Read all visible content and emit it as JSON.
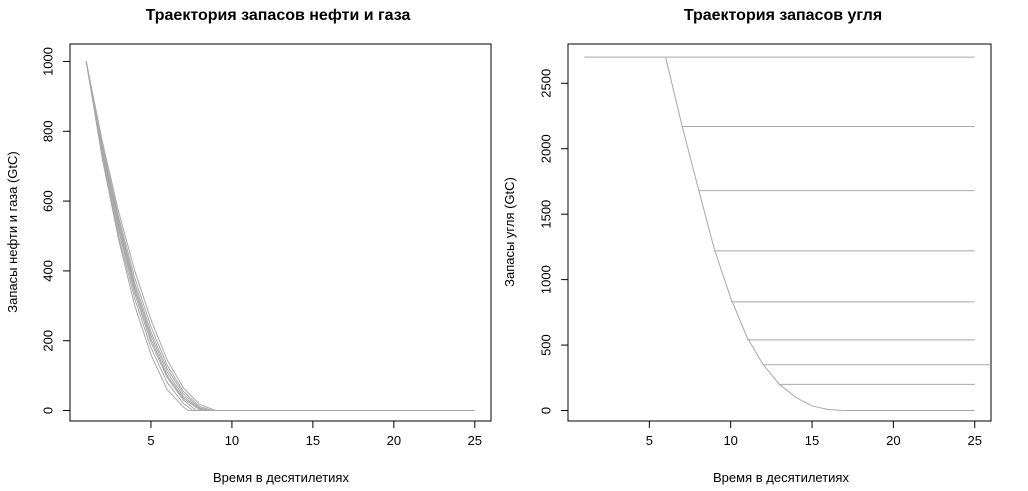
{
  "chart_data": [
    {
      "type": "line",
      "title": "Траектория запасов нефти и газа",
      "xlabel": "Время в десятилетиях",
      "ylabel": "Запасы нефти и газа (GtC)",
      "xlim": [
        0,
        26
      ],
      "ylim": [
        -30,
        1050
      ],
      "xticks": [
        5,
        10,
        15,
        20,
        25
      ],
      "yticks": [
        0,
        200,
        400,
        600,
        800,
        1000
      ],
      "line_color": "#a8a8a8",
      "series": [
        {
          "x": [
            1,
            2,
            3,
            4,
            5,
            6,
            7,
            7.3,
            8,
            25
          ],
          "y": [
            1000,
            720,
            490,
            300,
            160,
            60,
            10,
            0,
            0,
            0
          ]
        },
        {
          "x": [
            1,
            2,
            3,
            4,
            5,
            6,
            7,
            7.6,
            8,
            25
          ],
          "y": [
            1000,
            730,
            500,
            320,
            180,
            80,
            20,
            0,
            0,
            0
          ]
        },
        {
          "x": [
            1,
            2,
            3,
            4,
            5,
            6,
            7,
            7.8,
            8,
            25
          ],
          "y": [
            1000,
            740,
            515,
            335,
            195,
            95,
            30,
            0,
            0,
            0
          ]
        },
        {
          "x": [
            1,
            2,
            3,
            4,
            5,
            6,
            7,
            8,
            8.2,
            25
          ],
          "y": [
            1000,
            745,
            525,
            345,
            205,
            100,
            35,
            2,
            0,
            0
          ]
        },
        {
          "x": [
            1,
            2,
            3,
            4,
            5,
            6,
            7,
            8,
            8.4,
            25
          ],
          "y": [
            1000,
            750,
            535,
            355,
            215,
            110,
            40,
            5,
            0,
            0
          ]
        },
        {
          "x": [
            1,
            2,
            3,
            4,
            5,
            6,
            7,
            8,
            8.6,
            25
          ],
          "y": [
            1000,
            755,
            545,
            365,
            225,
            120,
            48,
            8,
            0,
            0
          ]
        },
        {
          "x": [
            1,
            2,
            3,
            4,
            5,
            6,
            7,
            8,
            8.8,
            25
          ],
          "y": [
            1000,
            760,
            555,
            380,
            240,
            130,
            55,
            12,
            0,
            0
          ]
        },
        {
          "x": [
            1,
            2,
            3,
            4,
            5,
            6,
            7,
            8,
            9,
            25
          ],
          "y": [
            1000,
            770,
            570,
            400,
            260,
            145,
            65,
            18,
            0,
            0
          ]
        }
      ]
    },
    {
      "type": "line",
      "title": "Траектория запасов угля",
      "xlabel": "Время в десятилетиях",
      "ylabel": "Запасы угля (GtC)",
      "xlim": [
        0,
        26
      ],
      "ylim": [
        -80,
        2800
      ],
      "xticks": [
        5,
        10,
        15,
        20,
        25
      ],
      "yticks": [
        0,
        500,
        1000,
        1500,
        2000,
        2500
      ],
      "line_color": "#a8a8a8",
      "series": [
        {
          "x": [
            1,
            25
          ],
          "y": [
            2700,
            2700
          ]
        },
        {
          "x": [
            6,
            7,
            8,
            9,
            10,
            11,
            12,
            13,
            14,
            15,
            16,
            17,
            25
          ],
          "y": [
            2700,
            2180,
            1700,
            1230,
            860,
            560,
            350,
            200,
            100,
            35,
            8,
            0,
            0
          ]
        },
        {
          "x": [
            7,
            25
          ],
          "y": [
            2170,
            2170
          ]
        },
        {
          "x": [
            8,
            25
          ],
          "y": [
            1680,
            1680
          ]
        },
        {
          "x": [
            9,
            25
          ],
          "y": [
            1220,
            1220
          ]
        },
        {
          "x": [
            10,
            25
          ],
          "y": [
            830,
            830
          ]
        },
        {
          "x": [
            11,
            25
          ],
          "y": [
            540,
            540
          ]
        },
        {
          "x": [
            12,
            26
          ],
          "y": [
            350,
            350
          ]
        },
        {
          "x": [
            13,
            25
          ],
          "y": [
            200,
            200
          ]
        }
      ]
    }
  ]
}
